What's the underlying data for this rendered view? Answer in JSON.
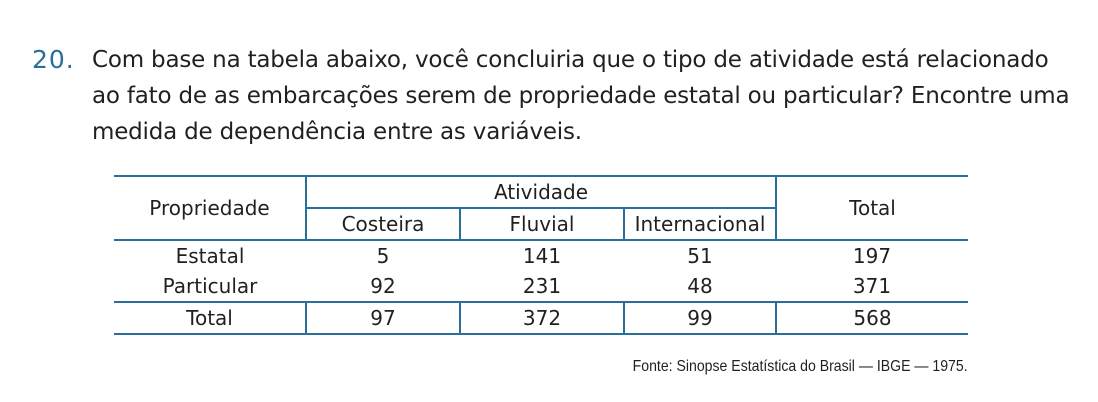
{
  "question": {
    "number": "20.",
    "text": "Com base na tabela abaixo, você concluiria que o tipo de atividade está relacionado ao fato de as embarcações serem de propriedade estatal ou particular? Encontre uma medida de dependência entre as variáveis."
  },
  "table": {
    "header_row_label": "Propriedade",
    "group_header": "Atividade",
    "columns": [
      "Costeira",
      "Fluvial",
      "Internacional"
    ],
    "total_header": "Total",
    "rows": [
      {
        "label": "Estatal",
        "values": [
          "5",
          "141",
          "51"
        ],
        "total": "197"
      },
      {
        "label": "Particular",
        "values": [
          "92",
          "231",
          "48"
        ],
        "total": "371"
      }
    ],
    "totals_row": {
      "label": "Total",
      "values": [
        "97",
        "372",
        "99"
      ],
      "total": "568"
    }
  },
  "source": "Fonte: Sinopse Estatística do Brasil — IBGE — 1975.",
  "colors": {
    "accent": "#2b6e9a",
    "text": "#231f20"
  }
}
